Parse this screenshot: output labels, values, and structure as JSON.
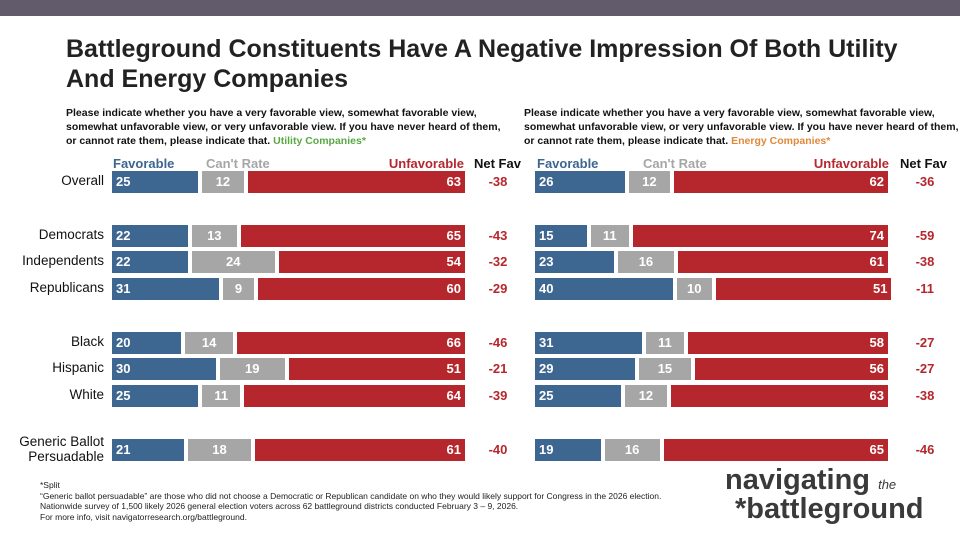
{
  "title": "Battleground Constituents Have A Negative Impression Of Both Utility And Energy Companies",
  "colors": {
    "favorable": "#3d6690",
    "cant_rate": "#a6a6a6",
    "unfavorable": "#b5272d",
    "utility": "#5aa845",
    "energy": "#e0893a",
    "net": "#b5272d"
  },
  "headers": {
    "favorable": "Favorable",
    "cant_rate": "Can't Rate",
    "unfavorable": "Unfavorable",
    "net": "Net Fav"
  },
  "question": "Please indicate whether you have a very favorable view, somewhat favorable view, somewhat unfavorable view, or very unfavorable view. If you have never heard of them, or cannot rate them, please indicate that.",
  "chart_data": [
    {
      "type": "bar",
      "stacked": true,
      "orientation": "horizontal",
      "subject": "Utility Companies*",
      "categories": [
        "Overall",
        "Democrats",
        "Independents",
        "Republicans",
        "Black",
        "Hispanic",
        "White",
        "Generic Ballot Persuadable"
      ],
      "series": [
        {
          "name": "Favorable",
          "values": [
            25,
            22,
            22,
            31,
            20,
            30,
            25,
            21
          ]
        },
        {
          "name": "Can't Rate",
          "values": [
            12,
            13,
            24,
            9,
            14,
            19,
            11,
            18
          ]
        },
        {
          "name": "Unfavorable",
          "values": [
            63,
            65,
            54,
            60,
            66,
            51,
            64,
            61
          ]
        }
      ],
      "net_fav": [
        "-38",
        "-43",
        "-32",
        "-29",
        "-46",
        "-21",
        "-39",
        "-40"
      ]
    },
    {
      "type": "bar",
      "stacked": true,
      "orientation": "horizontal",
      "subject": "Energy Companies*",
      "categories": [
        "Overall",
        "Democrats",
        "Independents",
        "Republicans",
        "Black",
        "Hispanic",
        "White",
        "Generic Ballot Persuadable"
      ],
      "series": [
        {
          "name": "Favorable",
          "values": [
            26,
            15,
            23,
            40,
            31,
            29,
            25,
            19
          ]
        },
        {
          "name": "Can't Rate",
          "values": [
            12,
            11,
            16,
            10,
            11,
            15,
            12,
            16
          ]
        },
        {
          "name": "Unfavorable",
          "values": [
            62,
            74,
            61,
            51,
            58,
            56,
            63,
            65
          ]
        }
      ],
      "net_fav": [
        "-36",
        "-59",
        "-38",
        "-11",
        "-27",
        "-27",
        "-38",
        "-46"
      ]
    }
  ],
  "footnotes": [
    "*Split",
    "“Generic ballot persuadable” are those who did not choose a Democratic or Republican candidate on who they would likely support for Congress in the 2026 election.",
    "Nationwide survey of 1,500 likely 2026 general election voters across 62 battleground districts conducted February 3 – 9, 2026.",
    "For more info, visit navigatorresearch.org/battleground."
  ],
  "logo": {
    "line1": "navigating",
    "the": "the",
    "line2": "battleground"
  }
}
